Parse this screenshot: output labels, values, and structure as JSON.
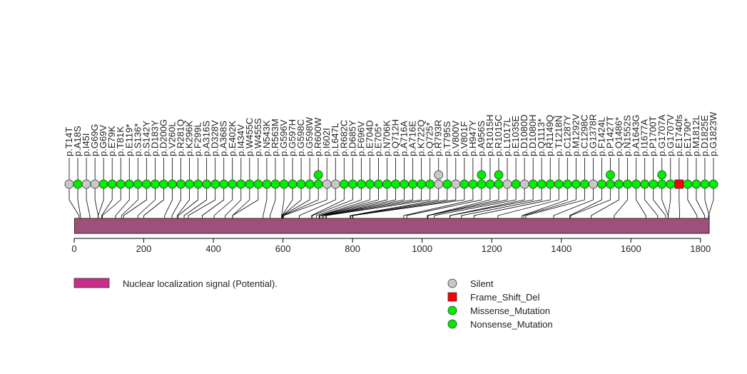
{
  "chart_data": {
    "type": "lollipop",
    "protein_length": 1825,
    "xlim": [
      0,
      1825
    ],
    "ticks": [
      0,
      200,
      400,
      600,
      800,
      1000,
      1200,
      1400,
      1600,
      1800
    ],
    "domain_bar": {
      "start": 1,
      "end": 1825,
      "color": "#9c5179"
    },
    "domain_legend": {
      "label": "Nuclear localization signal (Potential).",
      "color": "#c62e87"
    },
    "categories": [
      {
        "name": "Silent",
        "color": "#c8c8c8",
        "shape": "circle"
      },
      {
        "name": "Frame_Shift_Del",
        "color": "#ff0000",
        "shape": "square"
      },
      {
        "name": "Missense_Mutation",
        "color": "#00ee00",
        "shape": "circle"
      },
      {
        "name": "Nonsense_Mutation",
        "color": "#00ee00",
        "shape": "circle"
      }
    ],
    "mutations": [
      {
        "label": "p.T14T",
        "pos": 14,
        "type": "Silent",
        "count": 1
      },
      {
        "label": "p.A18S",
        "pos": 18,
        "type": "Missense_Mutation",
        "count": 1
      },
      {
        "label": "p.I45I",
        "pos": 45,
        "type": "Silent",
        "count": 1
      },
      {
        "label": "p.G69G",
        "pos": 69,
        "type": "Silent",
        "count": 1
      },
      {
        "label": "p.G69V",
        "pos": 69,
        "type": "Missense_Mutation",
        "count": 1
      },
      {
        "label": "p.E79K",
        "pos": 79,
        "type": "Missense_Mutation",
        "count": 1
      },
      {
        "label": "p.T81K",
        "pos": 81,
        "type": "Missense_Mutation",
        "count": 1
      },
      {
        "label": "p.E119*",
        "pos": 119,
        "type": "Nonsense_Mutation",
        "count": 1
      },
      {
        "label": "p.S136*",
        "pos": 136,
        "type": "Nonsense_Mutation",
        "count": 1
      },
      {
        "label": "p.S142Y",
        "pos": 142,
        "type": "Missense_Mutation",
        "count": 1
      },
      {
        "label": "p.D183Y",
        "pos": 183,
        "type": "Missense_Mutation",
        "count": 1
      },
      {
        "label": "p.D200G",
        "pos": 200,
        "type": "Missense_Mutation",
        "count": 1
      },
      {
        "label": "p.V260L",
        "pos": 260,
        "type": "Missense_Mutation",
        "count": 1
      },
      {
        "label": "p.R281Q",
        "pos": 281,
        "type": "Missense_Mutation",
        "count": 1
      },
      {
        "label": "p.K296K",
        "pos": 296,
        "type": "Missense_Mutation",
        "count": 1
      },
      {
        "label": "p.F299L",
        "pos": 299,
        "type": "Missense_Mutation",
        "count": 1
      },
      {
        "label": "p.A316S",
        "pos": 316,
        "type": "Missense_Mutation",
        "count": 1
      },
      {
        "label": "p.D328V",
        "pos": 328,
        "type": "Missense_Mutation",
        "count": 1
      },
      {
        "label": "p.A368S",
        "pos": 368,
        "type": "Missense_Mutation",
        "count": 1
      },
      {
        "label": "p.E402K",
        "pos": 402,
        "type": "Missense_Mutation",
        "count": 1
      },
      {
        "label": "p.I434V",
        "pos": 434,
        "type": "Missense_Mutation",
        "count": 1
      },
      {
        "label": "p.W455C",
        "pos": 455,
        "type": "Missense_Mutation",
        "count": 1
      },
      {
        "label": "p.W455S",
        "pos": 455,
        "type": "Missense_Mutation",
        "count": 1
      },
      {
        "label": "p.N543K",
        "pos": 543,
        "type": "Missense_Mutation",
        "count": 1
      },
      {
        "label": "p.R563M",
        "pos": 563,
        "type": "Missense_Mutation",
        "count": 1
      },
      {
        "label": "p.G596V",
        "pos": 596,
        "type": "Missense_Mutation",
        "count": 1
      },
      {
        "label": "p.G597H",
        "pos": 597,
        "type": "Missense_Mutation",
        "count": 1
      },
      {
        "label": "p.G598C",
        "pos": 598,
        "type": "Missense_Mutation",
        "count": 1
      },
      {
        "label": "p.G598W",
        "pos": 598,
        "type": "Missense_Mutation",
        "count": 1
      },
      {
        "label": "p.R600W",
        "pos": 600,
        "type": "Missense_Mutation",
        "count": 2
      },
      {
        "label": "p.I602I",
        "pos": 602,
        "type": "Silent",
        "count": 1
      },
      {
        "label": "p.L647L",
        "pos": 647,
        "type": "Silent",
        "count": 1
      },
      {
        "label": "p.R682C",
        "pos": 682,
        "type": "Missense_Mutation",
        "count": 1
      },
      {
        "label": "p.D685Y",
        "pos": 685,
        "type": "Missense_Mutation",
        "count": 1
      },
      {
        "label": "p.F696V",
        "pos": 696,
        "type": "Missense_Mutation",
        "count": 1
      },
      {
        "label": "p.E704D",
        "pos": 704,
        "type": "Missense_Mutation",
        "count": 1
      },
      {
        "label": "p.E705*",
        "pos": 705,
        "type": "Nonsense_Mutation",
        "count": 1
      },
      {
        "label": "p.N706K",
        "pos": 706,
        "type": "Missense_Mutation",
        "count": 1
      },
      {
        "label": "p.Q712H",
        "pos": 712,
        "type": "Missense_Mutation",
        "count": 1
      },
      {
        "label": "p.A716A",
        "pos": 716,
        "type": "Missense_Mutation",
        "count": 1
      },
      {
        "label": "p.A716E",
        "pos": 716,
        "type": "Missense_Mutation",
        "count": 1
      },
      {
        "label": "p.K722Q",
        "pos": 722,
        "type": "Missense_Mutation",
        "count": 1
      },
      {
        "label": "p.Q725*",
        "pos": 725,
        "type": "Nonsense_Mutation",
        "count": 1
      },
      {
        "label": "p.R793R",
        "pos": 793,
        "type": "Silent",
        "count": 2
      },
      {
        "label": "p.T795S",
        "pos": 795,
        "type": "Missense_Mutation",
        "count": 1
      },
      {
        "label": "p.V800V",
        "pos": 800,
        "type": "Silent",
        "count": 1
      },
      {
        "label": "p.V801F",
        "pos": 801,
        "type": "Missense_Mutation",
        "count": 1
      },
      {
        "label": "p.H947Y",
        "pos": 947,
        "type": "Missense_Mutation",
        "count": 1
      },
      {
        "label": "p.A956S",
        "pos": 956,
        "type": "Missense_Mutation",
        "count": 2
      },
      {
        "label": "p.R1015H",
        "pos": 1015,
        "type": "Missense_Mutation",
        "count": 1
      },
      {
        "label": "p.R1015C",
        "pos": 1015,
        "type": "Missense_Mutation",
        "count": 2
      },
      {
        "label": "p.L1017L",
        "pos": 1017,
        "type": "Silent",
        "count": 1
      },
      {
        "label": "p.E1035E",
        "pos": 1035,
        "type": "Missense_Mutation",
        "count": 1
      },
      {
        "label": "p.D1080D",
        "pos": 1080,
        "type": "Silent",
        "count": 1
      },
      {
        "label": "p.D1080H",
        "pos": 1080,
        "type": "Missense_Mutation",
        "count": 1
      },
      {
        "label": "p.Q1113*",
        "pos": 1113,
        "type": "Nonsense_Mutation",
        "count": 1
      },
      {
        "label": "p.R1149Q",
        "pos": 1149,
        "type": "Missense_Mutation",
        "count": 1
      },
      {
        "label": "p.T1218N",
        "pos": 1218,
        "type": "Missense_Mutation",
        "count": 1
      },
      {
        "label": "p.C1287Y",
        "pos": 1287,
        "type": "Missense_Mutation",
        "count": 1
      },
      {
        "label": "p.M1292V",
        "pos": 1292,
        "type": "Missense_Mutation",
        "count": 1
      },
      {
        "label": "p.C1298C",
        "pos": 1298,
        "type": "Missense_Mutation",
        "count": 1
      },
      {
        "label": "p.G1378R",
        "pos": 1378,
        "type": "Silent",
        "count": 1
      },
      {
        "label": "p.F1424L",
        "pos": 1424,
        "type": "Missense_Mutation",
        "count": 1
      },
      {
        "label": "p.P1427T",
        "pos": 1427,
        "type": "Missense_Mutation",
        "count": 2
      },
      {
        "label": "p.Q1486*",
        "pos": 1486,
        "type": "Nonsense_Mutation",
        "count": 1
      },
      {
        "label": "p.N1552S",
        "pos": 1552,
        "type": "Missense_Mutation",
        "count": 1
      },
      {
        "label": "p.A1643G",
        "pos": 1643,
        "type": "Missense_Mutation",
        "count": 1
      },
      {
        "label": "p.I1677A",
        "pos": 1677,
        "type": "Missense_Mutation",
        "count": 1
      },
      {
        "label": "p.P1700T",
        "pos": 1700,
        "type": "Missense_Mutation",
        "count": 1
      },
      {
        "label": "p.G1707A",
        "pos": 1707,
        "type": "Missense_Mutation",
        "count": 2
      },
      {
        "label": "p.G1707V",
        "pos": 1707,
        "type": "Missense_Mutation",
        "count": 1
      },
      {
        "label": "p.E1740fs",
        "pos": 1740,
        "type": "Frame_Shift_Del",
        "count": 1
      },
      {
        "label": "p.E1790*",
        "pos": 1790,
        "type": "Nonsense_Mutation",
        "count": 1
      },
      {
        "label": "p.M1812L",
        "pos": 1812,
        "type": "Missense_Mutation",
        "count": 1
      },
      {
        "label": "p.D1825E",
        "pos": 1825,
        "type": "Missense_Mutation",
        "count": 1
      },
      {
        "label": "p.G1823W",
        "pos": 1823,
        "type": "Missense_Mutation",
        "count": 1
      }
    ]
  }
}
